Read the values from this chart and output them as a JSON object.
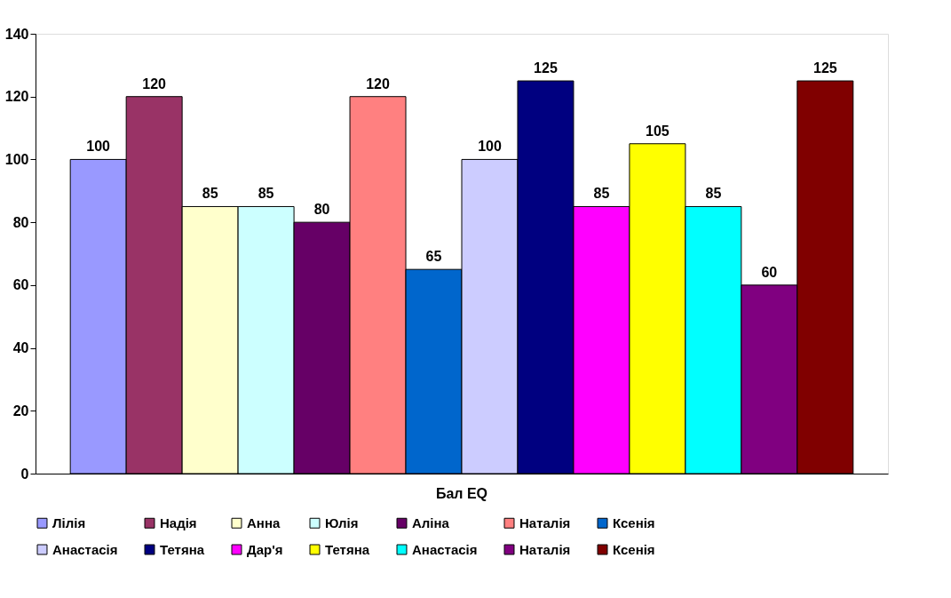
{
  "chart_data": {
    "type": "bar",
    "categories": [
      "Бал EQ"
    ],
    "series": [
      {
        "name": "Лілія",
        "color": "#9999ff",
        "values": [
          100
        ]
      },
      {
        "name": "Надія",
        "color": "#993366",
        "values": [
          120
        ]
      },
      {
        "name": "Анна",
        "color": "#ffffcc",
        "values": [
          85
        ]
      },
      {
        "name": "Юлія",
        "color": "#ccffff",
        "values": [
          85
        ]
      },
      {
        "name": "Аліна",
        "color": "#660066",
        "values": [
          80
        ]
      },
      {
        "name": "Наталія",
        "color": "#ff8080",
        "values": [
          120
        ]
      },
      {
        "name": "Ксенія",
        "color": "#0066cc",
        "values": [
          65
        ]
      },
      {
        "name": "Анастасія",
        "color": "#ccccff",
        "values": [
          100
        ]
      },
      {
        "name": "Тетяна",
        "color": "#000080",
        "values": [
          125
        ]
      },
      {
        "name": "Дар'я",
        "color": "#ff00ff",
        "values": [
          85
        ]
      },
      {
        "name": "Тетяна",
        "color": "#ffff00",
        "values": [
          105
        ]
      },
      {
        "name": "Анастасія",
        "color": "#00ffff",
        "values": [
          85
        ]
      },
      {
        "name": "Наталія",
        "color": "#800080",
        "values": [
          60
        ]
      },
      {
        "name": "Ксенія",
        "color": "#800000",
        "values": [
          125
        ]
      }
    ],
    "ylim": [
      0,
      140
    ],
    "yticks": [
      0,
      20,
      40,
      60,
      80,
      100,
      120,
      140
    ],
    "grid": false,
    "legend": "bottom",
    "data_labels": true
  }
}
